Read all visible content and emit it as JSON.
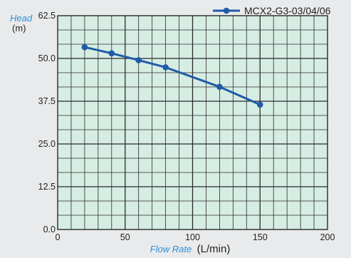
{
  "chart_data": {
    "type": "line",
    "title": "",
    "ylabel_main": "Head",
    "ylabel_unit": "(m)",
    "xlabel_main": "Flow Rate",
    "xlabel_unit": "(L/min)",
    "xlim": [
      0,
      200
    ],
    "ylim": [
      0,
      62.5
    ],
    "x_ticks": [
      "0",
      "50",
      "100",
      "150",
      "200"
    ],
    "y_ticks": [
      "0.0",
      "12.5",
      "25.0",
      "37.5",
      "50.0",
      "62.5"
    ],
    "grid": true,
    "legend_position": "top-right",
    "series": [
      {
        "name": "MCX2-G3-03/04/06",
        "color": "#1f5ba8",
        "x": [
          20,
          40,
          60,
          80,
          120,
          150
        ],
        "y": [
          53.3,
          51.5,
          49.5,
          47.4,
          41.7,
          36.5
        ]
      }
    ]
  },
  "colors": {
    "plot_background": "#d6ede3",
    "grid": "#2a2a2a",
    "axis_label": "#2f8fd6"
  }
}
